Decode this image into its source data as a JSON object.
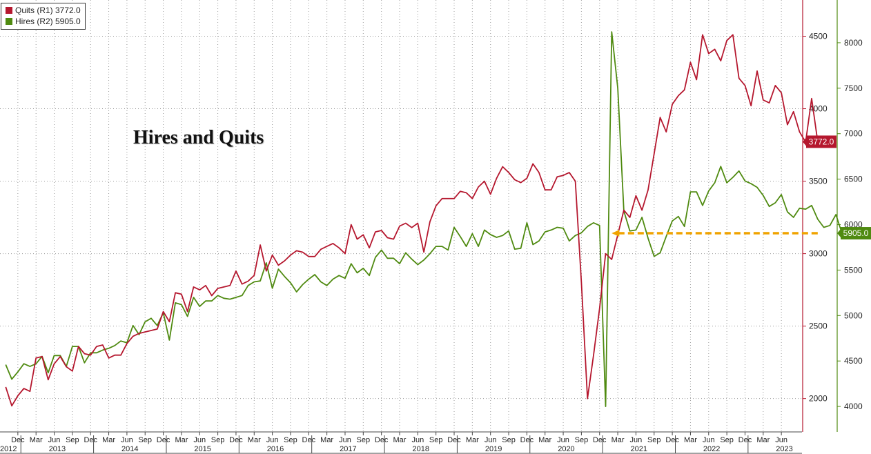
{
  "legend": {
    "quits_label": "Quits (R1) 3772.0",
    "hires_label": "Hires (R2) 5905.0"
  },
  "chart_data": {
    "type": "line",
    "title": "Hires and Quits",
    "x_months_start": "2012-10",
    "x_tick_labels": [
      "Dec",
      "Mar",
      "Jun",
      "Sep",
      "Dec",
      "Mar",
      "Jun",
      "Sep",
      "Dec",
      "Mar",
      "Jun",
      "Sep",
      "Dec",
      "Mar",
      "Jun",
      "Sep",
      "Dec",
      "Mar",
      "Jun",
      "Sep",
      "Dec",
      "Mar",
      "Jun",
      "Sep",
      "Dec",
      "Mar",
      "Jun",
      "Sep",
      "Dec",
      "Mar",
      "Jun",
      "Sep",
      "Dec",
      "Mar",
      "Jun",
      "Sep",
      "Dec",
      "Mar",
      "Jun",
      "Sep",
      "Dec",
      "Mar",
      "Jun"
    ],
    "year_labels": [
      "2012",
      "2013",
      "2014",
      "2015",
      "2016",
      "2017",
      "2018",
      "2019",
      "2020",
      "2021",
      "2022",
      "2023"
    ],
    "colors": {
      "quits": "#b5172e",
      "hires": "#4f8a10",
      "arrow": "#f0a300",
      "axis": "#444444",
      "grid": "#999999"
    },
    "series": [
      {
        "name": "Quits (R1)",
        "axis": "R1",
        "last_value": "3772.0",
        "ylim": [
          1770,
          4750
        ],
        "ticks": [
          2000,
          2500,
          3000,
          3500,
          4000,
          4500
        ],
        "values": [
          2080,
          1950,
          2020,
          2070,
          2050,
          2280,
          2290,
          2130,
          2240,
          2290,
          2220,
          2190,
          2360,
          2310,
          2300,
          2360,
          2370,
          2280,
          2300,
          2300,
          2380,
          2430,
          2450,
          2460,
          2470,
          2480,
          2600,
          2530,
          2730,
          2720,
          2600,
          2770,
          2750,
          2780,
          2710,
          2760,
          2770,
          2780,
          2880,
          2790,
          2810,
          2850,
          3060,
          2880,
          2990,
          2920,
          2950,
          2990,
          3020,
          3010,
          2980,
          2980,
          3030,
          3050,
          3070,
          3040,
          3000,
          3200,
          3100,
          3130,
          3040,
          3150,
          3160,
          3110,
          3100,
          3190,
          3210,
          3180,
          3210,
          3010,
          3220,
          3330,
          3380,
          3380,
          3380,
          3430,
          3420,
          3380,
          3460,
          3500,
          3410,
          3520,
          3600,
          3560,
          3510,
          3490,
          3520,
          3620,
          3560,
          3440,
          3440,
          3530,
          3540,
          3560,
          3500,
          2800,
          2000,
          2300,
          2620,
          3000,
          2960,
          3130,
          3300,
          3250,
          3400,
          3300,
          3440,
          3690,
          3940,
          3840,
          4030,
          4090,
          4130,
          4320,
          4200,
          4510,
          4380,
          4410,
          4330,
          4470,
          4510,
          4210,
          4160,
          4020,
          4260,
          4060,
          4040,
          4160,
          4110,
          3890,
          3980,
          3840,
          3770,
          4070,
          3772
        ]
      },
      {
        "name": "Hires (R2)",
        "axis": "R2",
        "last_value": "5905.0",
        "ylim": [
          3720,
          8470
        ],
        "ticks": [
          4000,
          4500,
          5000,
          5500,
          6000,
          6500,
          7000,
          7500,
          8000
        ],
        "values": [
          4460,
          4300,
          4380,
          4470,
          4440,
          4470,
          4550,
          4370,
          4560,
          4560,
          4440,
          4660,
          4660,
          4480,
          4590,
          4590,
          4620,
          4640,
          4670,
          4720,
          4700,
          4890,
          4790,
          4930,
          4970,
          4890,
          5030,
          4730,
          5140,
          5120,
          4990,
          5200,
          5100,
          5160,
          5160,
          5220,
          5190,
          5180,
          5200,
          5220,
          5330,
          5370,
          5380,
          5580,
          5300,
          5510,
          5430,
          5360,
          5260,
          5340,
          5400,
          5450,
          5370,
          5330,
          5400,
          5440,
          5410,
          5570,
          5470,
          5520,
          5440,
          5640,
          5720,
          5630,
          5630,
          5570,
          5690,
          5620,
          5560,
          5610,
          5680,
          5760,
          5760,
          5720,
          5970,
          5870,
          5760,
          5900,
          5760,
          5940,
          5890,
          5860,
          5880,
          5930,
          5730,
          5740,
          6020,
          5780,
          5820,
          5920,
          5940,
          5970,
          5960,
          5820,
          5880,
          5910,
          5980,
          6020,
          5990,
          4000,
          8120,
          7500,
          6150,
          5930,
          5940,
          6080,
          5850,
          5650,
          5690,
          5870,
          6040,
          6090,
          5980,
          6360,
          6360,
          6210,
          6370,
          6460,
          6640,
          6460,
          6520,
          6590,
          6480,
          6450,
          6410,
          6320,
          6200,
          6240,
          6330,
          6140,
          6080,
          6180,
          6170,
          6210,
          6060,
          5970,
          5990,
          6110,
          5905
        ]
      }
    ],
    "annotations": [
      {
        "type": "arrow",
        "value_axis": "R2",
        "value": 5905,
        "from_month": "2023-06",
        "to_month": "2021-02"
      }
    ],
    "grid": true
  }
}
